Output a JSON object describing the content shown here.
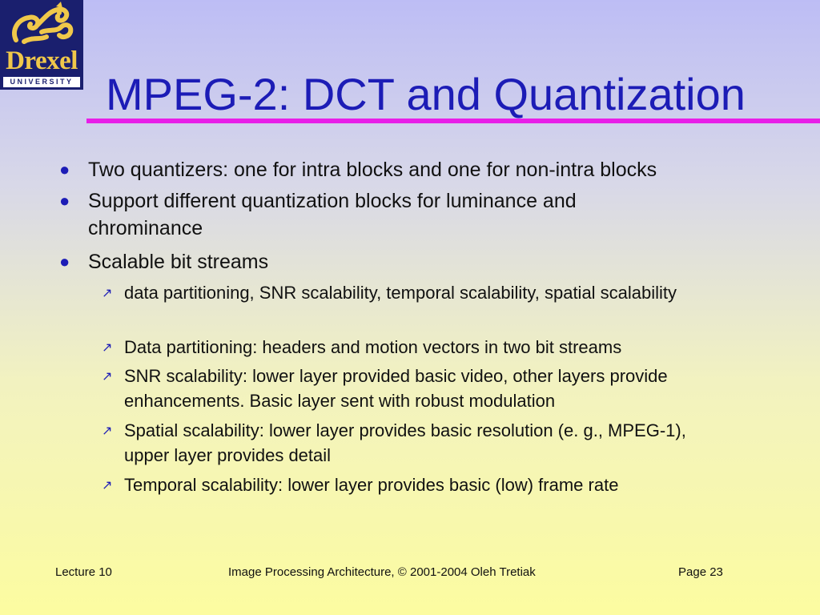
{
  "logo": {
    "name": "Drexel",
    "band": "UNIVERSITY",
    "colors": {
      "background": "#1a1f6e",
      "gold": "#f0c84a"
    }
  },
  "slide": {
    "title": "MPEG-2: DCT and Quantization",
    "bullets": [
      {
        "text": "Two quantizers: one for intra blocks and one for non-intra blocks"
      },
      {
        "text": "Support different quantization blocks for luminance and chrominance"
      },
      {
        "text": "Scalable bit streams",
        "sub": [
          "data partitioning, SNR scalability, temporal scalability, spatial scalability",
          "Data partitioning: headers and motion vectors in two bit streams",
          "SNR scalability: lower layer provided basic video, other layers provide enhancements. Basic layer sent with robust modulation",
          "Spatial scalability: lower layer provides basic resolution (e. g., MPEG-1), upper layer provides detail",
          "Temporal scalability: lower layer provides basic (low) frame rate"
        ]
      }
    ]
  },
  "footer": {
    "lecture": "Lecture 10",
    "course": "Image Processing Architecture, © 2001-2004  Oleh Tretiak",
    "page": "Page 23"
  },
  "colors": {
    "title": "#1c1cb6",
    "rule": "#e81ee8",
    "bullet": "#1c1cb6"
  }
}
